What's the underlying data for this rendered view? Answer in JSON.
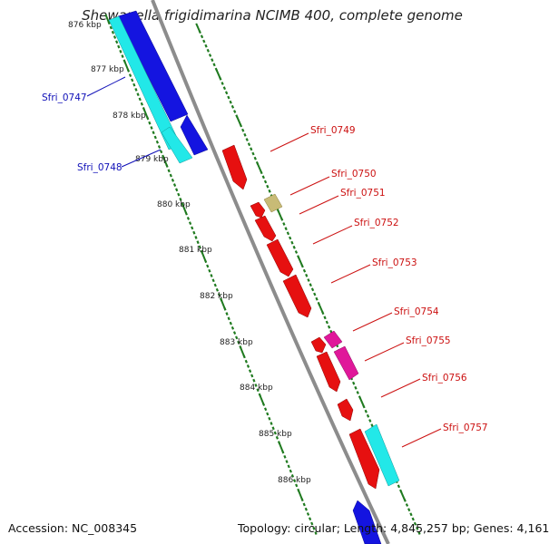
{
  "title": "Shewanella frigidimarina NCIMB 400, complete genome",
  "footer": {
    "accession": "Accession: NC_008345",
    "topology": "Topology: circular; Length: 4,845,257 bp; Genes: 4,161"
  },
  "colors": {
    "backbone": "#8c8c8c",
    "tick_green": "#1f7a1f",
    "reverse_label": "#1010b8",
    "forward_label": "#cc1111"
  },
  "tick_labels": [
    "876 kbp",
    "877 kbp",
    "878 kbp",
    "879 kbp",
    "880 kbp",
    "881 kbp",
    "882 kbp",
    "883 kbp",
    "884 kbp",
    "885 kbp",
    "886 kbp"
  ],
  "gene_labels": {
    "left": [
      "Sfri_0747",
      "Sfri_0748"
    ],
    "right": [
      "Sfri_0749",
      "Sfri_0750",
      "Sfri_0751",
      "Sfri_0752",
      "Sfri_0753",
      "Sfri_0754",
      "Sfri_0755",
      "Sfri_0756",
      "Sfri_0757"
    ]
  },
  "feature_colors": {
    "cds_blue": "#1414e0",
    "cds_cyan": "#22e8e8",
    "cds_red": "#e61010",
    "cds_magenta": "#e0189a",
    "cds_khaki": "#c8bb76"
  }
}
